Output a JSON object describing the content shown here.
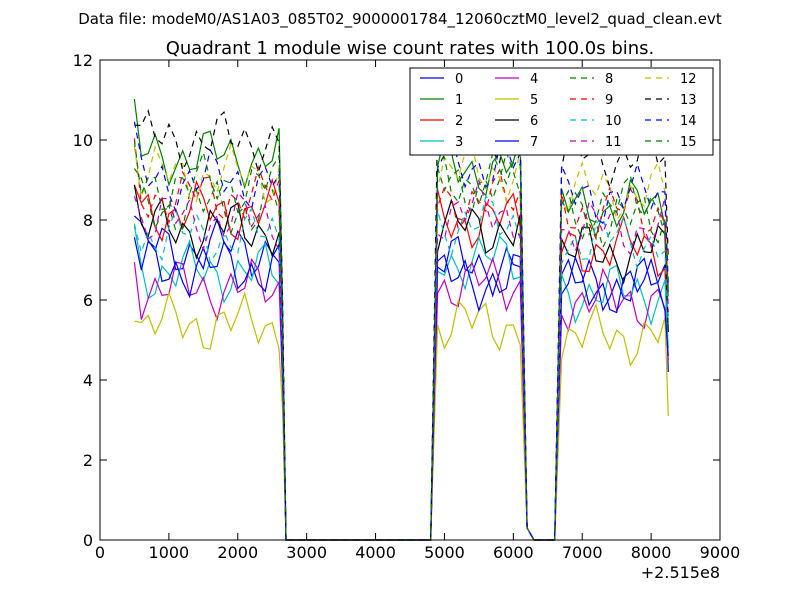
{
  "figure": {
    "suptitle": "Data file: modeM0/AS1A03_085T02_9000001784_12060cztM0_level2_quad_clean.evt"
  },
  "chart_data": {
    "type": "line",
    "title": "Quadrant 1 module wise count rates with 100.0s bins.",
    "xlabel": "",
    "ylabel": "",
    "x_offset_label": "+2.515e8",
    "xlim": [
      0,
      9000
    ],
    "ylim": [
      0,
      12
    ],
    "xticks": [
      0,
      1000,
      2000,
      3000,
      4000,
      5000,
      6000,
      7000,
      8000,
      9000
    ],
    "xtick_labels": [
      "0",
      "1000",
      "2000",
      "3000",
      "4000",
      "5000",
      "6000",
      "7000",
      "8000",
      "9000"
    ],
    "yticks": [
      0,
      2,
      4,
      6,
      8,
      10,
      12
    ],
    "ytick_labels": [
      "0",
      "2",
      "4",
      "6",
      "8",
      "10",
      "12"
    ],
    "legend_position": "top-right",
    "legend_columns": 4,
    "segments": [
      {
        "x_start": 500,
        "x_end": 2600,
        "step": 100
      },
      {
        "x_start": 4900,
        "x_end": 6100,
        "step": 100
      },
      {
        "x_start": 6700,
        "x_end": 8200,
        "step": 100
      }
    ],
    "series": [
      {
        "name": "0",
        "color": "#0000ff",
        "style": "solid",
        "levels": [
          7.3,
          6.9,
          6.4
        ],
        "end": 4.2
      },
      {
        "name": "1",
        "color": "#008000",
        "style": "solid",
        "levels": [
          9.6,
          9.3,
          8.3
        ],
        "end": 6.2
      },
      {
        "name": "2",
        "color": "#ff0000",
        "style": "solid",
        "levels": [
          8.2,
          8.0,
          7.3
        ],
        "end": 5.6
      },
      {
        "name": "3",
        "color": "#00bfbf",
        "style": "solid",
        "levels": [
          6.7,
          7.0,
          6.2
        ],
        "end": 4.8
      },
      {
        "name": "4",
        "color": "#bf00bf",
        "style": "solid",
        "levels": [
          6.3,
          6.4,
          6.0
        ],
        "end": 4.5
      },
      {
        "name": "5",
        "color": "#bfbf00",
        "style": "solid",
        "levels": [
          5.4,
          5.4,
          5.1
        ],
        "end": 3.1
      },
      {
        "name": "6",
        "color": "#000000",
        "style": "solid",
        "levels": [
          7.8,
          7.8,
          7.2
        ],
        "end": 5.2
      },
      {
        "name": "7",
        "color": "#0000ff",
        "style": "solid",
        "levels": [
          6.8,
          6.5,
          6.3
        ],
        "end": 4.6
      },
      {
        "name": "8",
        "color": "#008000",
        "style": "dashed",
        "levels": [
          8.3,
          8.9,
          8.0
        ],
        "end": 6.0
      },
      {
        "name": "9",
        "color": "#ff0000",
        "style": "dashed",
        "levels": [
          8.6,
          8.5,
          8.2
        ],
        "end": 6.3
      },
      {
        "name": "10",
        "color": "#00bfbf",
        "style": "dashed",
        "levels": [
          7.6,
          7.9,
          7.5
        ],
        "end": 5.4
      },
      {
        "name": "11",
        "color": "#bf00bf",
        "style": "dashed",
        "levels": [
          8.0,
          8.2,
          7.8
        ],
        "end": 5.7
      },
      {
        "name": "12",
        "color": "#bfbf00",
        "style": "dashed",
        "levels": [
          9.1,
          9.2,
          8.7
        ],
        "end": 6.4
      },
      {
        "name": "13",
        "color": "#000000",
        "style": "dashed",
        "levels": [
          10.0,
          10.1,
          9.6
        ],
        "end": 7.0
      },
      {
        "name": "14",
        "color": "#0000ff",
        "style": "dashed",
        "levels": [
          9.0,
          9.4,
          8.6
        ],
        "end": 6.3
      },
      {
        "name": "15",
        "color": "#008000",
        "style": "dashed",
        "levels": [
          8.9,
          9.0,
          8.4
        ],
        "end": 6.1
      }
    ]
  }
}
